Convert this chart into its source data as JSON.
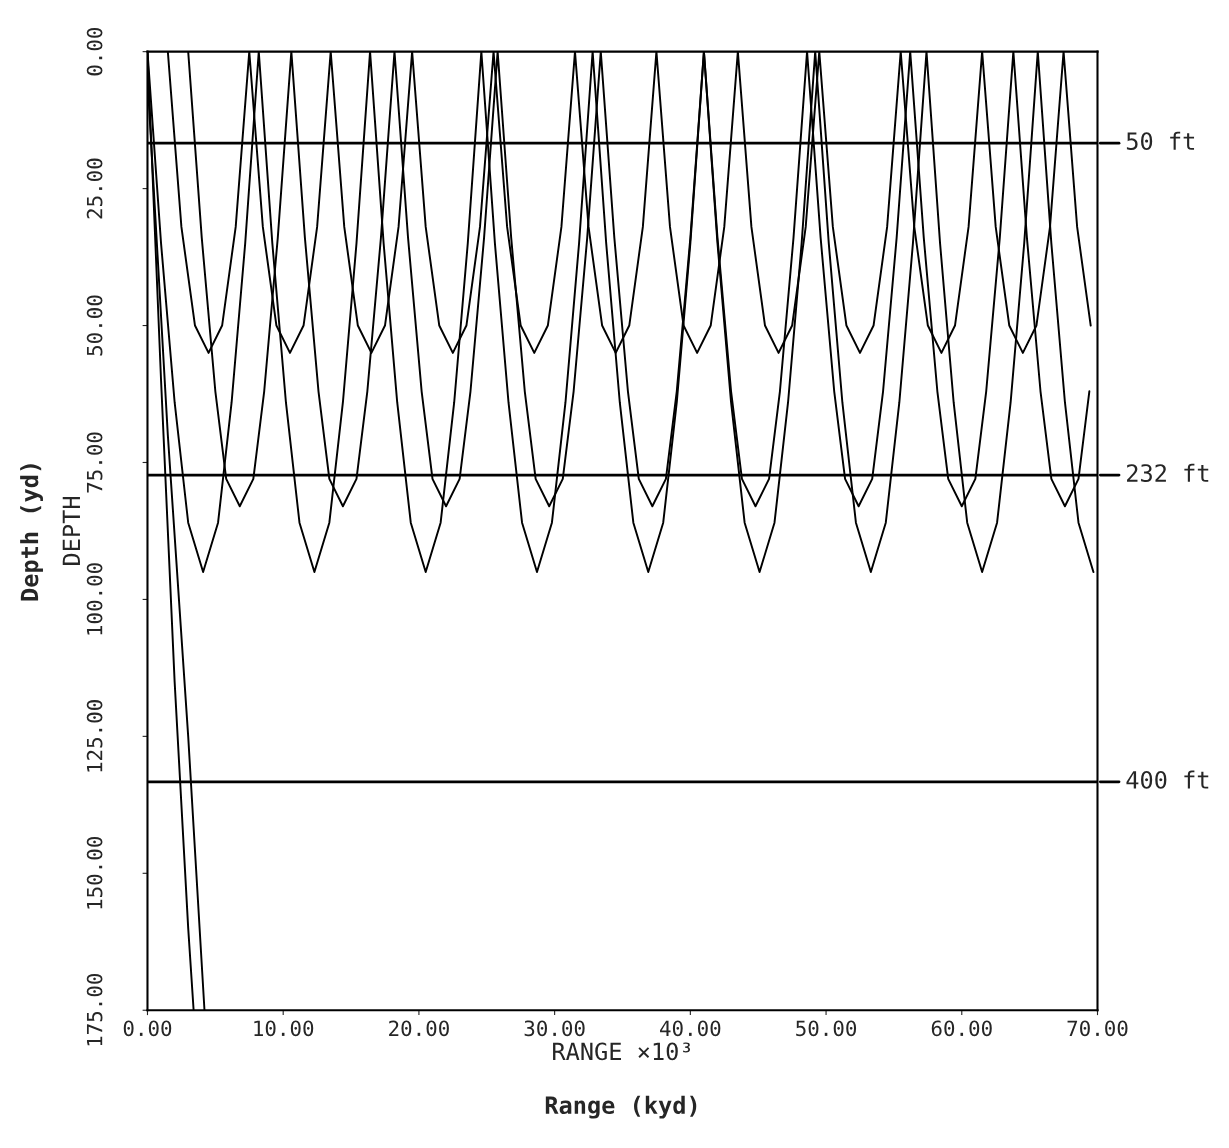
{
  "chart_data": {
    "type": "line",
    "xlabel": "Range (kyd)",
    "ylabel": "Depth (yd)",
    "annotations": [
      "DEPTH",
      "RANGE ×10³"
    ],
    "xlim": [
      0,
      70
    ],
    "ylim": [
      175,
      0
    ],
    "xticks": [
      {
        "value": 0,
        "label": "0.00"
      },
      {
        "value": 10,
        "label": "10.00"
      },
      {
        "value": 20,
        "label": "20.00"
      },
      {
        "value": 30,
        "label": "30.00"
      },
      {
        "value": 40,
        "label": "40.00"
      },
      {
        "value": 50,
        "label": "50.00"
      },
      {
        "value": 60,
        "label": "60.00"
      },
      {
        "value": 70,
        "label": "70.00"
      }
    ],
    "yticks": [
      {
        "value": 0,
        "label": "0.00"
      },
      {
        "value": 25,
        "label": "25.00"
      },
      {
        "value": 50,
        "label": "50.00"
      },
      {
        "value": 75,
        "label": "75.00"
      },
      {
        "value": 100,
        "label": "100.00"
      },
      {
        "value": 125,
        "label": "125.00"
      },
      {
        "value": 150,
        "label": "150.00"
      },
      {
        "value": 175,
        "label": "175.00"
      }
    ],
    "grid": false,
    "legend": false,
    "marker": "none",
    "line_style": "solid",
    "ref_lines": [
      {
        "axis": "y",
        "value": 16.7,
        "label": "50 ft",
        "color": "#000000"
      },
      {
        "axis": "y",
        "value": 77.3,
        "label": "232 ft",
        "color": "#000000"
      },
      {
        "axis": "y",
        "value": 133.3,
        "label": "400 ft",
        "color": "#000000"
      }
    ],
    "series": [
      {
        "color": "#000000",
        "x": [
          0,
          1,
          2,
          3,
          4.1,
          5.2,
          6.2,
          7.2,
          8.2,
          9.2,
          10.2,
          11.2,
          12.3,
          13.4,
          14.4,
          15.4,
          16.4,
          17.4,
          18.4,
          19.4,
          20.5,
          21.6,
          22.6,
          23.6,
          24.6,
          25.6,
          26.6,
          27.6,
          28.7,
          29.8,
          30.8,
          31.8,
          32.8,
          33.8,
          34.8,
          35.8,
          36.9,
          38.0,
          39.0,
          40.0,
          41.0,
          42.0,
          43.0,
          44.0,
          45.1,
          46.2,
          47.2,
          48.2,
          49.2,
          50.2,
          51.2,
          52.2,
          53.3,
          54.4,
          55.4,
          56.4,
          57.4,
          58.4,
          59.4,
          60.4,
          61.5,
          62.6,
          63.6,
          64.6,
          65.6,
          66.6,
          67.6,
          68.6,
          69.7
        ],
        "values": [
          0,
          35,
          64,
          86,
          95,
          86,
          64,
          35,
          0,
          35,
          64,
          86,
          95,
          86,
          64,
          35,
          0,
          35,
          64,
          86,
          95,
          86,
          64,
          35,
          0,
          35,
          64,
          86,
          95,
          86,
          64,
          35,
          0,
          35,
          64,
          86,
          95,
          86,
          64,
          35,
          0,
          35,
          64,
          86,
          95,
          86,
          64,
          35,
          0,
          35,
          64,
          86,
          95,
          86,
          64,
          35,
          0,
          35,
          64,
          86,
          95,
          86,
          64,
          35,
          0,
          35,
          64,
          86,
          95
        ]
      },
      {
        "color": "#000000",
        "x": [
          3.0,
          4.0,
          5.0,
          5.8,
          6.8,
          7.8,
          8.6,
          9.6,
          10.6,
          11.6,
          12.6,
          13.4,
          14.4,
          15.4,
          16.2,
          17.2,
          18.2,
          19.2,
          20.2,
          21.0,
          22.0,
          23.0,
          23.8,
          24.8,
          25.8,
          26.8,
          27.8,
          28.6,
          29.6,
          30.6,
          31.4,
          32.4,
          33.4,
          34.4,
          35.4,
          36.2,
          37.2,
          38.2,
          39.0,
          40.0,
          41.0,
          42.0,
          43.0,
          43.8,
          44.8,
          45.8,
          46.6,
          47.6,
          48.6,
          49.6,
          50.6,
          51.4,
          52.4,
          53.4,
          54.2,
          55.2,
          56.2,
          57.2,
          58.2,
          59.0,
          60.0,
          61.0,
          61.8,
          62.8,
          63.8,
          64.8,
          65.8,
          66.6,
          67.6,
          68.6,
          69.4
        ],
        "values": [
          0,
          34,
          62,
          78,
          83,
          78,
          62,
          34,
          0,
          34,
          62,
          78,
          83,
          78,
          62,
          34,
          0,
          34,
          62,
          78,
          83,
          78,
          62,
          34,
          0,
          34,
          62,
          78,
          83,
          78,
          62,
          34,
          0,
          34,
          62,
          78,
          83,
          78,
          62,
          34,
          0,
          34,
          62,
          78,
          83,
          78,
          62,
          34,
          0,
          34,
          62,
          78,
          83,
          78,
          62,
          34,
          0,
          34,
          62,
          78,
          83,
          78,
          62,
          34,
          0,
          34,
          62,
          78,
          83,
          78,
          62
        ]
      },
      {
        "color": "#000000",
        "x": [
          1.5,
          2.5,
          3.5,
          4.5,
          5.5,
          6.5,
          7.5,
          8.5,
          9.5,
          10.5,
          11.5,
          12.5,
          13.5,
          14.5,
          15.5,
          16.5,
          17.5,
          18.5,
          19.5,
          20.5,
          21.5,
          22.5,
          23.5,
          24.5,
          25.5,
          26.5,
          27.5,
          28.5,
          29.5,
          30.5,
          31.5,
          32.5,
          33.5,
          34.5,
          35.5,
          36.5,
          37.5,
          38.5,
          39.5,
          40.5,
          41.5,
          42.5,
          43.5,
          44.5,
          45.5,
          46.5,
          47.5,
          48.5,
          49.5,
          50.5,
          51.5,
          52.5,
          53.5,
          54.5,
          55.5,
          56.5,
          57.5,
          58.5,
          59.5,
          60.5,
          61.5,
          62.5,
          63.5,
          64.5,
          65.5,
          66.5,
          67.5,
          68.5,
          69.5
        ],
        "values": [
          0,
          32,
          50,
          55,
          50,
          32,
          0,
          32,
          50,
          55,
          50,
          32,
          0,
          32,
          50,
          55,
          50,
          32,
          0,
          32,
          50,
          55,
          50,
          32,
          0,
          32,
          50,
          55,
          50,
          32,
          0,
          32,
          50,
          55,
          50,
          32,
          0,
          32,
          50,
          55,
          50,
          32,
          0,
          32,
          50,
          55,
          50,
          32,
          0,
          32,
          50,
          55,
          50,
          32,
          0,
          32,
          50,
          55,
          50,
          32,
          0,
          32,
          50,
          55,
          50,
          32,
          0,
          32,
          50
        ]
      },
      {
        "color": "#000000",
        "x": [
          0,
          1,
          2,
          3,
          3.4
        ],
        "values": [
          0,
          60,
          115,
          160,
          175
        ]
      },
      {
        "color": "#000000",
        "x": [
          0,
          1.5,
          3,
          4.2
        ],
        "values": [
          5,
          70,
          125,
          175
        ]
      }
    ]
  }
}
